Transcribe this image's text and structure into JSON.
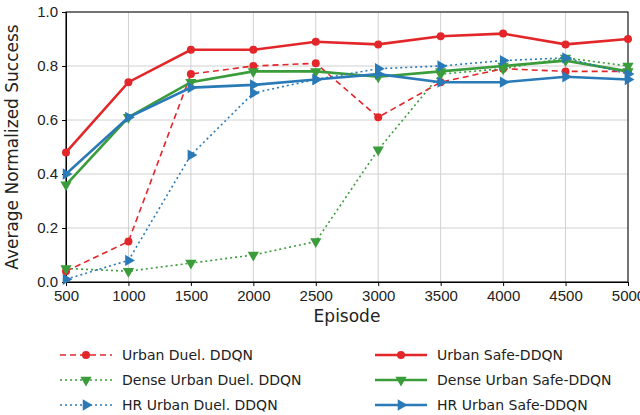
{
  "chart_data": {
    "type": "line",
    "x_label": "Episode",
    "y_label": "Average Normalized Success",
    "x": [
      500,
      1000,
      1500,
      2000,
      2500,
      3000,
      3500,
      4000,
      4500,
      5000
    ],
    "xlim": [
      500,
      5000
    ],
    "xticks": [
      500,
      1000,
      1500,
      2000,
      2500,
      3000,
      3500,
      4000,
      4500,
      5000
    ],
    "ylim": [
      0,
      1
    ],
    "yticks": [
      {
        "value": 0,
        "label": "0.0"
      },
      {
        "value": 0.2,
        "label": "0.2"
      },
      {
        "value": 0.4,
        "label": "0.4"
      },
      {
        "value": 0.6,
        "label": "0.6"
      },
      {
        "value": 0.8,
        "label": "0.8"
      },
      {
        "value": 1,
        "label": "1.0"
      }
    ],
    "grid": true,
    "legend": "bottom",
    "series": [
      {
        "name": "Urban Duel. DDQN",
        "color": "#e3262a",
        "marker": "circle",
        "line_style": "dashed",
        "values": [
          0.04,
          0.15,
          0.77,
          0.8,
          0.81,
          0.61,
          0.74,
          0.79,
          0.78,
          0.78
        ]
      },
      {
        "name": "Urban Safe-DDQN",
        "color": "#e3262a",
        "marker": "circle",
        "line_style": "solid",
        "values": [
          0.48,
          0.74,
          0.86,
          0.86,
          0.89,
          0.88,
          0.91,
          0.92,
          0.88,
          0.9
        ]
      },
      {
        "name": "Dense Urban Duel. DDQN",
        "color": "#3a9c3a",
        "marker": "triangle-down",
        "line_style": "dotted",
        "values": [
          0.05,
          0.04,
          0.07,
          0.1,
          0.15,
          0.49,
          0.77,
          0.79,
          0.83,
          0.8
        ]
      },
      {
        "name": "Dense Urban Safe-DDQN",
        "color": "#3a9c3a",
        "marker": "triangle-down",
        "line_style": "solid",
        "values": [
          0.36,
          0.61,
          0.74,
          0.78,
          0.78,
          0.76,
          0.78,
          0.8,
          0.82,
          0.78
        ]
      },
      {
        "name": "HR Urban Duel. DDQN",
        "color": "#2a7ab8",
        "marker": "triangle-right",
        "line_style": "dotted",
        "values": [
          0.01,
          0.08,
          0.47,
          0.7,
          0.75,
          0.79,
          0.8,
          0.82,
          0.83,
          0.77
        ]
      },
      {
        "name": "HR Urban Safe-DDQN",
        "color": "#2a7ab8",
        "marker": "triangle-right",
        "line_style": "solid",
        "values": [
          0.4,
          0.61,
          0.72,
          0.73,
          0.75,
          0.77,
          0.74,
          0.74,
          0.76,
          0.75
        ]
      }
    ]
  }
}
